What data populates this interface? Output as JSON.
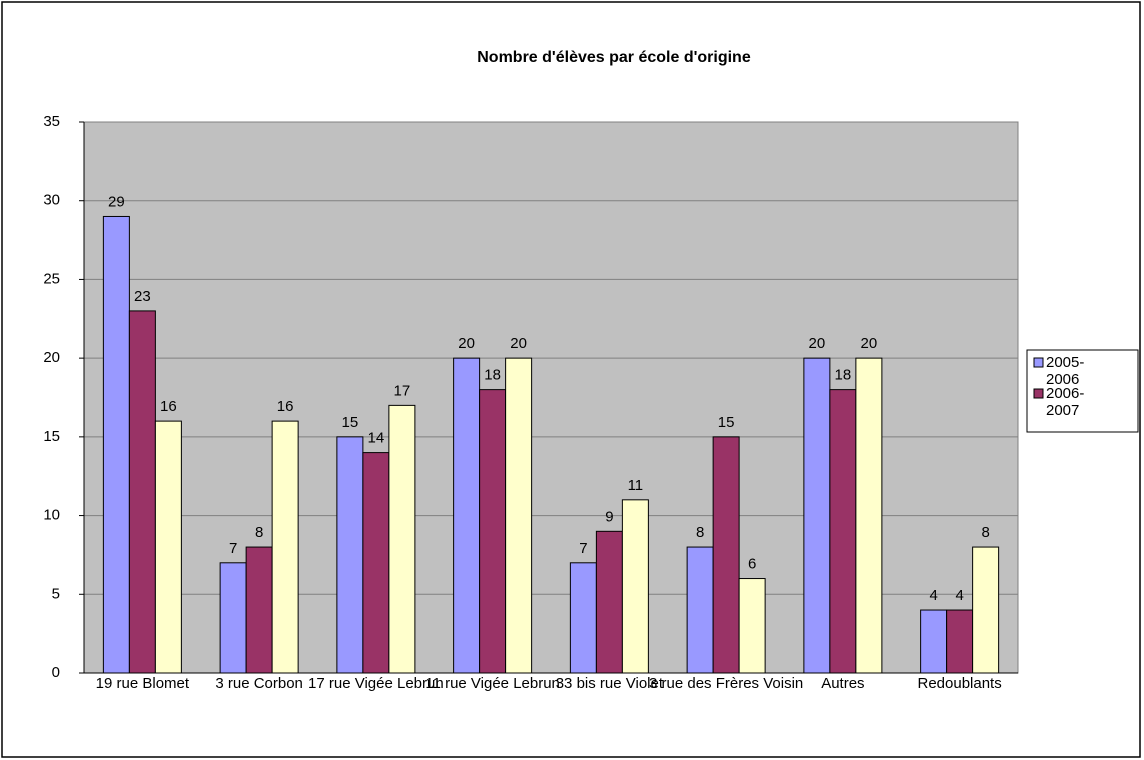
{
  "chart_data": {
    "type": "bar",
    "title": "Nombre d'élèves par école d'origine",
    "categories": [
      "19 rue Blomet",
      "3 rue Corbon",
      "17 rue Vigée Lebrun",
      "11 rue Vigée Lebrun",
      "33 bis rue Violet",
      "3 rue des Frères Voisin",
      "Autres",
      "Redoublants"
    ],
    "series": [
      {
        "name": "2005-2006",
        "color": "#9999ff",
        "values": [
          29,
          7,
          15,
          20,
          7,
          8,
          20,
          4
        ]
      },
      {
        "name": "2006-2007",
        "color": "#993366",
        "values": [
          23,
          8,
          14,
          18,
          9,
          15,
          18,
          4
        ]
      },
      {
        "color": "#ffffcc",
        "values": [
          16,
          16,
          17,
          20,
          11,
          6,
          20,
          8
        ]
      }
    ],
    "ylim": [
      0,
      35
    ],
    "yticks": [
      0,
      5,
      10,
      15,
      20,
      25,
      30,
      35
    ],
    "grid": true,
    "legend": "right"
  }
}
